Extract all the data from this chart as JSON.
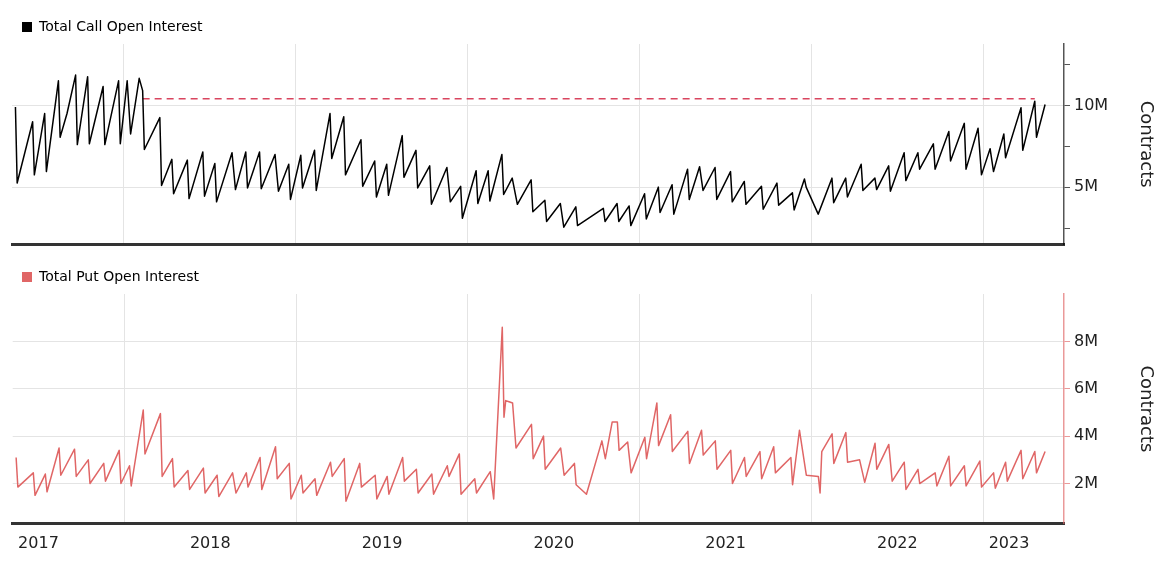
{
  "chart_data": [
    {
      "type": "line",
      "ylabel": "Contracts",
      "legend": "top left",
      "grid": true,
      "tick_labels": "y",
      "xlim": [
        2017.35,
        2023.47
      ],
      "xticks": [
        {
          "value": 2018,
          "label": null
        },
        {
          "value": 2019,
          "label": null
        },
        {
          "value": 2020,
          "label": null
        },
        {
          "value": 2021,
          "label": null
        },
        {
          "value": 2022,
          "label": null
        },
        {
          "value": 2023,
          "label": null
        }
      ],
      "ylim": [
        1.5,
        13.75
      ],
      "yticks": [
        {
          "value": 2.5,
          "label": null
        },
        {
          "value": 5,
          "label": "5M"
        },
        {
          "value": 7.5,
          "label": null
        },
        {
          "value": 10,
          "label": "10M"
        },
        {
          "value": 12.5,
          "label": null
        }
      ],
      "series": [
        {
          "name": "Total Call Open Interest",
          "color": "#000000",
          "x": [
            2017.37,
            2017.38,
            2017.47,
            2017.48,
            2017.54,
            2017.55,
            2017.62,
            2017.63,
            2017.67,
            2017.72,
            2017.73,
            2017.79,
            2017.8,
            2017.88,
            2017.89,
            2017.97,
            2017.98,
            2018.02,
            2018.04,
            2018.09,
            2018.11,
            2018.12,
            2018.21,
            2018.22,
            2018.28,
            2018.29,
            2018.37,
            2018.38,
            2018.46,
            2018.47,
            2018.53,
            2018.54,
            2018.63,
            2018.65,
            2018.71,
            2018.72,
            2018.79,
            2018.8,
            2018.88,
            2018.9,
            2018.96,
            2018.97,
            2019.03,
            2019.04,
            2019.11,
            2019.12,
            2019.2,
            2019.21,
            2019.28,
            2019.29,
            2019.38,
            2019.39,
            2019.46,
            2019.47,
            2019.53,
            2019.54,
            2019.62,
            2019.63,
            2019.7,
            2019.71,
            2019.78,
            2019.79,
            2019.88,
            2019.9,
            2019.96,
            2019.97,
            2020.05,
            2020.06,
            2020.12,
            2020.13,
            2020.2,
            2020.21,
            2020.26,
            2020.29,
            2020.37,
            2020.38,
            2020.45,
            2020.46,
            2020.54,
            2020.56,
            2020.63,
            2020.64,
            2020.79,
            2020.8,
            2020.87,
            2020.88,
            2020.94,
            2020.95,
            2021.03,
            2021.04,
            2021.11,
            2021.12,
            2021.19,
            2021.2,
            2021.28,
            2021.29,
            2021.35,
            2021.37,
            2021.44,
            2021.45,
            2021.53,
            2021.54,
            2021.61,
            2021.62,
            2021.71,
            2021.72,
            2021.8,
            2021.81,
            2021.89,
            2021.9,
            2021.96,
            2021.97,
            2022.04,
            2022.12,
            2022.13,
            2022.2,
            2022.21,
            2022.29,
            2022.3,
            2022.37,
            2022.38,
            2022.45,
            2022.46,
            2022.54,
            2022.55,
            2022.62,
            2022.63,
            2022.71,
            2022.72,
            2022.8,
            2022.81,
            2022.89,
            2022.9,
            2022.97,
            2022.99,
            2023.04,
            2023.06,
            2023.12,
            2023.13,
            2023.22,
            2023.23,
            2023.3,
            2023.31,
            2023.36
          ],
          "values": [
            9.9,
            5.25,
            9,
            5.75,
            9.5,
            5.95,
            11.5,
            8.05,
            9.5,
            11.85,
            7.6,
            11.75,
            7.65,
            11.15,
            7.6,
            11.5,
            7.65,
            11.5,
            8.25,
            11.65,
            10.9,
            7.3,
            9.25,
            5.1,
            6.7,
            4.6,
            6.65,
            4.3,
            7.15,
            4.45,
            6.45,
            4.1,
            7.1,
            4.85,
            7.15,
            4.95,
            7.15,
            4.9,
            7,
            4.75,
            6.4,
            4.25,
            6.95,
            4.95,
            7.25,
            4.8,
            9.5,
            6.75,
            9.3,
            5.75,
            7.9,
            5.05,
            6.6,
            4.4,
            6.4,
            4.5,
            8.15,
            5.6,
            7.25,
            4.95,
            6.3,
            3.95,
            6.2,
            4.1,
            5.05,
            3.1,
            6,
            4,
            6,
            4.15,
            7,
            4.55,
            5.55,
            3.95,
            5.45,
            3.5,
            4.2,
            2.9,
            4,
            2.55,
            3.8,
            2.65,
            3.7,
            2.9,
            4,
            2.9,
            3.85,
            2.65,
            4.6,
            3.05,
            5,
            3.45,
            5.15,
            3.35,
            6.1,
            4.25,
            6.25,
            4.8,
            6.2,
            4.25,
            5.95,
            4.1,
            5.35,
            3.95,
            5.05,
            3.65,
            5.25,
            3.9,
            4.65,
            3.6,
            5.5,
            5,
            3.35,
            5.55,
            4.05,
            5.55,
            4.4,
            6.4,
            4.8,
            5.55,
            4.85,
            6.3,
            4.75,
            7.1,
            5.4,
            7.1,
            6.1,
            7.65,
            6.1,
            8.4,
            6.6,
            8.9,
            6.1,
            8.6,
            5.75,
            7.35,
            5.95,
            8.25,
            6.8,
            9.85,
            7.25,
            10.25,
            8.05,
            10.05
          ]
        },
        {
          "type": "line",
          "color": "#d9455f",
          "line_style": "dashed",
          "x": [
            2018.11,
            2023.3
          ],
          "values": [
            10.4,
            10.4
          ]
        }
      ]
    },
    {
      "type": "line",
      "ylabel": "Contracts",
      "legend": "top left",
      "grid": true,
      "xlim": [
        2017.35,
        2023.47
      ],
      "xticks": [
        {
          "value": 2017.5,
          "label": "2017"
        },
        {
          "value": 2018,
          "label": null
        },
        {
          "value": 2018.5,
          "label": "2018"
        },
        {
          "value": 2019,
          "label": null
        },
        {
          "value": 2019.5,
          "label": "2019"
        },
        {
          "value": 2020,
          "label": null
        },
        {
          "value": 2020.5,
          "label": "2020"
        },
        {
          "value": 2021,
          "label": null
        },
        {
          "value": 2021.5,
          "label": "2021"
        },
        {
          "value": 2022,
          "label": null
        },
        {
          "value": 2022.5,
          "label": "2022"
        },
        {
          "value": 2023,
          "label": null
        },
        {
          "value": 2023.15,
          "label": "2023"
        }
      ],
      "ylim": [
        0.3,
        10
      ],
      "yticks": [
        {
          "value": 2,
          "label": "2M"
        },
        {
          "value": 4,
          "label": "4M"
        },
        {
          "value": 6,
          "label": "6M"
        },
        {
          "value": 8,
          "label": "8M"
        }
      ],
      "series": [
        {
          "name": "Total Put Open Interest",
          "color": "#e06666",
          "x": [
            2017.37,
            2017.38,
            2017.47,
            2017.48,
            2017.54,
            2017.55,
            2017.62,
            2017.63,
            2017.71,
            2017.72,
            2017.79,
            2017.8,
            2017.88,
            2017.89,
            2017.97,
            2017.98,
            2018.03,
            2018.04,
            2018.11,
            2018.12,
            2018.21,
            2018.22,
            2018.28,
            2018.29,
            2018.37,
            2018.38,
            2018.46,
            2018.47,
            2018.54,
            2018.55,
            2018.63,
            2018.65,
            2018.71,
            2018.72,
            2018.79,
            2018.8,
            2018.88,
            2018.89,
            2018.96,
            2018.97,
            2019.03,
            2019.04,
            2019.11,
            2019.12,
            2019.2,
            2019.21,
            2019.28,
            2019.29,
            2019.37,
            2019.38,
            2019.46,
            2019.47,
            2019.53,
            2019.54,
            2019.62,
            2019.63,
            2019.7,
            2019.71,
            2019.79,
            2019.8,
            2019.88,
            2019.89,
            2019.95,
            2019.96,
            2020.04,
            2020.05,
            2020.13,
            2020.15,
            2020.2,
            2020.21,
            2020.22,
            2020.26,
            2020.28,
            2020.37,
            2020.38,
            2020.44,
            2020.45,
            2020.54,
            2020.56,
            2020.62,
            2020.63,
            2020.69,
            2020.78,
            2020.8,
            2020.84,
            2020.87,
            2020.88,
            2020.93,
            2020.95,
            2021.03,
            2021.04,
            2021.1,
            2021.11,
            2021.18,
            2021.19,
            2021.28,
            2021.29,
            2021.36,
            2021.37,
            2021.44,
            2021.45,
            2021.53,
            2021.54,
            2021.61,
            2021.62,
            2021.7,
            2021.71,
            2021.78,
            2021.79,
            2021.88,
            2021.89,
            2021.93,
            2021.97,
            2022.04,
            2022.05,
            2022.06,
            2022.12,
            2022.13,
            2022.2,
            2022.21,
            2022.28,
            2022.31,
            2022.37,
            2022.38,
            2022.45,
            2022.47,
            2022.54,
            2022.55,
            2022.62,
            2022.63,
            2022.72,
            2022.73,
            2022.8,
            2022.81,
            2022.89,
            2022.9,
            2022.98,
            2022.99,
            2023.06,
            2023.07,
            2023.13,
            2023.14,
            2023.22,
            2023.23,
            2023.3,
            2023.31,
            2023.36
          ],
          "values": [
            3.1,
            1.85,
            2.45,
            1.5,
            2.4,
            1.65,
            3.5,
            2.35,
            3.45,
            2.3,
            3,
            2,
            2.85,
            2.1,
            3.4,
            2,
            2.75,
            1.9,
            5.1,
            3.25,
            4.95,
            2.3,
            3.05,
            1.85,
            2.55,
            1.75,
            2.65,
            1.6,
            2.35,
            1.45,
            2.45,
            1.6,
            2.45,
            1.85,
            3.1,
            1.75,
            3.55,
            2.2,
            2.85,
            1.35,
            2.35,
            1.6,
            2.2,
            1.5,
            2.9,
            2.3,
            3.05,
            1.25,
            2.85,
            1.85,
            2.35,
            1.35,
            2.3,
            1.55,
            3.1,
            2.1,
            2.6,
            1.6,
            2.4,
            1.55,
            2.75,
            2.3,
            3.25,
            1.55,
            2.2,
            1.6,
            2.5,
            1.35,
            8.6,
            4.8,
            5.5,
            5.4,
            3.5,
            4.5,
            3.05,
            4,
            2.6,
            3.5,
            2.35,
            2.85,
            1.95,
            1.55,
            3.8,
            3.05,
            4.6,
            4.6,
            3.4,
            3.75,
            2.45,
            3.95,
            3.05,
            5.4,
            3.6,
            4.9,
            3.35,
            4.2,
            2.85,
            4.25,
            3.2,
            3.8,
            2.6,
            3.4,
            2,
            3.1,
            2.3,
            3.35,
            2.2,
            3.55,
            2.45,
            3.1,
            1.95,
            4.25,
            2.35,
            2.3,
            1.6,
            3.35,
            4.1,
            2.85,
            4.15,
            2.9,
            3,
            2.05,
            3.7,
            2.6,
            3.65,
            2.1,
            2.9,
            1.75,
            2.6,
            2,
            2.45,
            1.9,
            3.15,
            1.9,
            2.75,
            1.9,
            2.95,
            1.85,
            2.45,
            1.8,
            2.9,
            2.1,
            3.4,
            2.2,
            3.35,
            2.45,
            3.35
          ]
        }
      ]
    }
  ]
}
